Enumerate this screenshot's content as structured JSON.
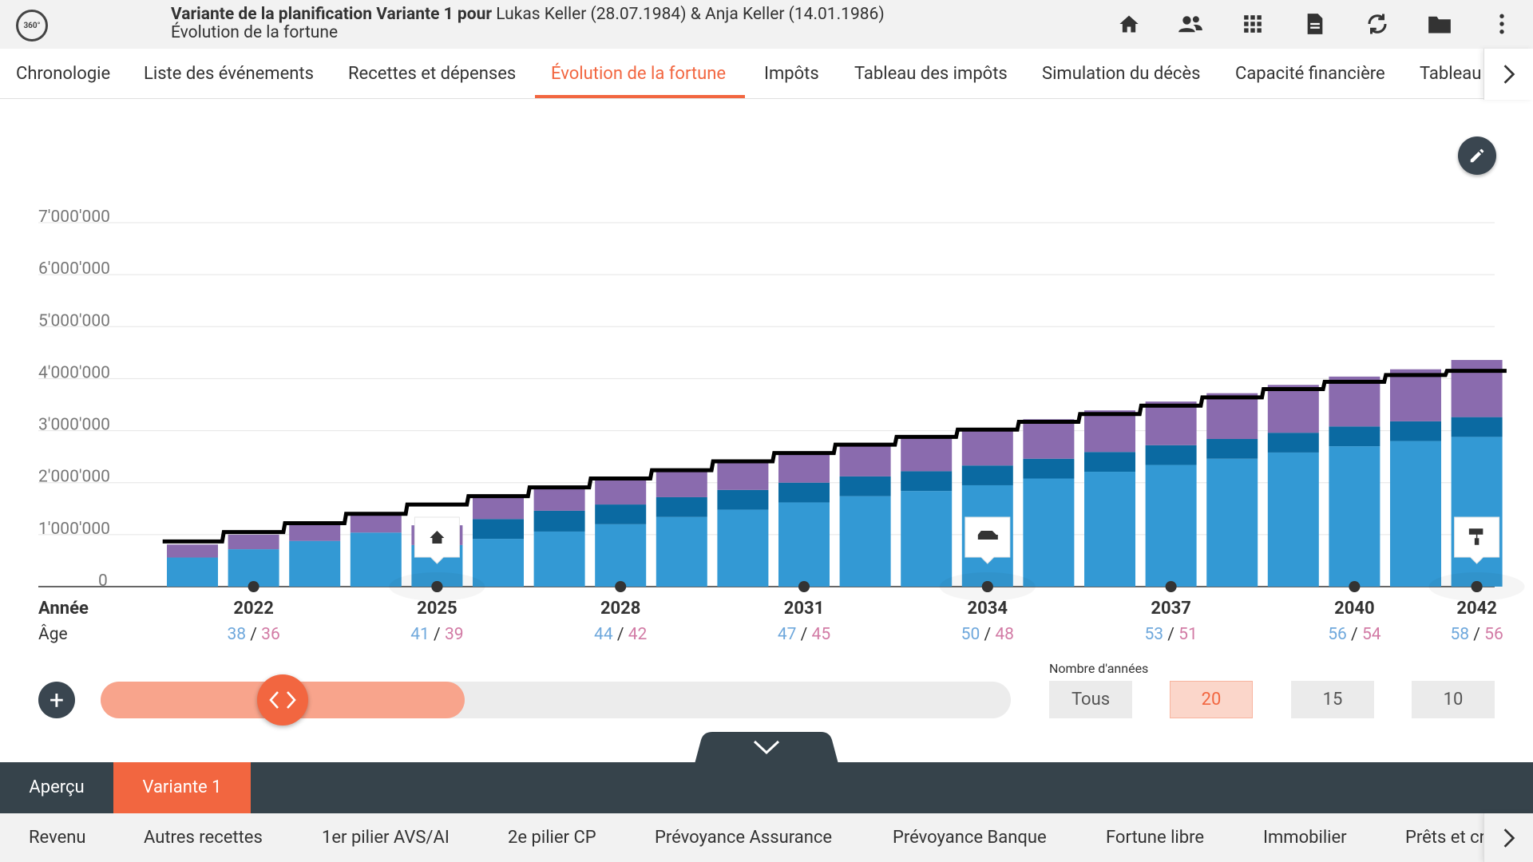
{
  "header": {
    "logo_text": "360°",
    "title_bold": "Variante de la planification Variante 1 pour",
    "title_rest": " Lukas Keller (28.07.1984) & Anja Keller (14.01.1986)",
    "subtitle": "Évolution de la fortune",
    "icons": [
      "home-icon",
      "users-icon",
      "grid-icon",
      "document-icon",
      "refresh-icon",
      "folder-icon",
      "more-vertical-icon"
    ]
  },
  "tabs": [
    {
      "label": "Chronologie"
    },
    {
      "label": "Liste des événements"
    },
    {
      "label": "Recettes et dépenses"
    },
    {
      "label": "Évolution de la fortune",
      "active": true
    },
    {
      "label": "Impôts"
    },
    {
      "label": "Tableau des impôts"
    },
    {
      "label": "Simulation du décès"
    },
    {
      "label": "Capacité financière"
    },
    {
      "label": "Tableau"
    }
  ],
  "chart_data": {
    "type": "bar",
    "stacked": true,
    "ylim": [
      0,
      7000000
    ],
    "yticks": [
      "0",
      "1'000'000",
      "2'000'000",
      "3'000'000",
      "4'000'000",
      "5'000'000",
      "6'000'000",
      "7'000'000"
    ],
    "years": [
      2021,
      2022,
      2023,
      2024,
      2025,
      2026,
      2027,
      2028,
      2029,
      2030,
      2031,
      2032,
      2033,
      2034,
      2035,
      2036,
      2037,
      2038,
      2039,
      2040,
      2041,
      2042
    ],
    "labeled_years": [
      2022,
      2025,
      2028,
      2031,
      2034,
      2037,
      2040,
      2042
    ],
    "ages": {
      "2022": [
        "38",
        "36"
      ],
      "2025": [
        "41",
        "39"
      ],
      "2028": [
        "44",
        "42"
      ],
      "2031": [
        "47",
        "45"
      ],
      "2034": [
        "50",
        "48"
      ],
      "2037": [
        "53",
        "51"
      ],
      "2040": [
        "56",
        "54"
      ],
      "2042": [
        "58",
        "56"
      ]
    },
    "row_labels": {
      "year": "Année",
      "age": "Âge"
    },
    "colors": {
      "series1": "#3399d4",
      "series2": "#0b6aa2",
      "series3": "#8a6bae",
      "total_line": "#000000",
      "grid": "#e5e5e5"
    },
    "series": [
      {
        "values": [
          560000,
          720000,
          880000,
          1040000,
          800000,
          920000,
          1060000,
          1200000,
          1340000,
          1480000,
          1620000,
          1740000,
          1840000,
          1950000,
          2080000,
          2210000,
          2340000,
          2460000,
          2580000,
          2700000,
          2800000,
          2880000
        ]
      },
      {
        "values": [
          0,
          0,
          0,
          0,
          0,
          380000,
          400000,
          380000,
          380000,
          380000,
          380000,
          380000,
          380000,
          380000,
          380000,
          380000,
          380000,
          380000,
          380000,
          380000,
          380000,
          380000
        ]
      },
      {
        "values": [
          250000,
          280000,
          310000,
          340000,
          380000,
          420000,
          450000,
          480000,
          520000,
          560000,
          600000,
          640000,
          680000,
          720000,
          760000,
          800000,
          840000,
          880000,
          920000,
          960000,
          1000000,
          1100000
        ]
      }
    ],
    "total": [
      870000,
      1050000,
      1220000,
      1400000,
      1580000,
      1740000,
      1910000,
      2080000,
      2240000,
      2410000,
      2570000,
      2730000,
      2880000,
      3020000,
      3170000,
      3320000,
      3480000,
      3640000,
      3800000,
      3940000,
      4070000,
      4150000
    ],
    "events": [
      {
        "year": 2025,
        "icon": "house-icon"
      },
      {
        "year": 2034,
        "icon": "car-icon"
      },
      {
        "year": 2042,
        "icon": "paint-roller-icon"
      }
    ]
  },
  "slider": {
    "value_fraction": 0.19,
    "fill_fraction": 0.32
  },
  "years_selector": {
    "label": "Nombre d'années",
    "options": [
      {
        "label": "Tous"
      },
      {
        "label": "20",
        "selected": true
      },
      {
        "label": "15"
      },
      {
        "label": "10"
      }
    ]
  },
  "variant_tabs": [
    {
      "label": "Aperçu"
    },
    {
      "label": "Variante 1",
      "active": true
    }
  ],
  "categories": [
    "Revenu",
    "Autres recettes",
    "1er pilier AVS/AI",
    "2e pilier CP",
    "Prévoyance Assurance",
    "Prévoyance Banque",
    "Fortune libre",
    "Immobilier",
    "Prêts et cr"
  ]
}
